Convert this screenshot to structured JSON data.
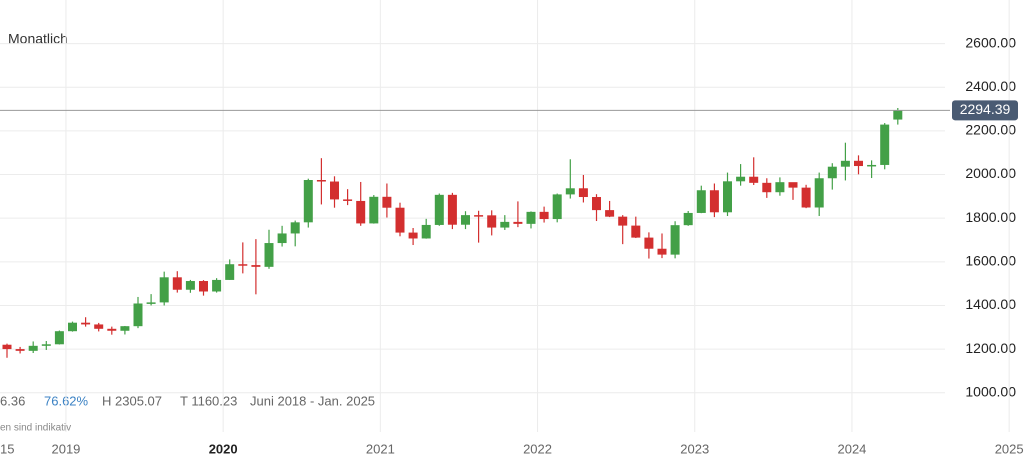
{
  "chart_data": {
    "type": "candlestick",
    "title": "Monatlich",
    "stats": {
      "change": "6.36",
      "change_pct": "76.62%",
      "high": "H 2305.07",
      "low": "T 1160.23",
      "range": "Juni 2018 - Jan. 2025"
    },
    "note": "en sind indikativ",
    "left_cut_label": "15",
    "next_year_label": "2025",
    "categories": [
      null,
      null,
      null,
      null,
      null,
      "2019",
      null,
      null,
      null,
      null,
      null,
      null,
      null,
      null,
      null,
      null,
      null,
      "2020",
      null,
      null,
      null,
      null,
      null,
      null,
      null,
      null,
      null,
      null,
      null,
      "2021",
      null,
      null,
      null,
      null,
      null,
      null,
      null,
      null,
      null,
      null,
      null,
      "2022",
      null,
      null,
      null,
      null,
      null,
      null,
      null,
      null,
      null,
      null,
      null,
      "2023",
      null,
      null,
      null,
      null,
      null,
      null,
      null,
      null,
      null,
      null,
      null,
      "2024",
      null,
      null,
      null
    ],
    "open": [
      1220,
      1200,
      1192,
      1215,
      1222,
      1282,
      1321,
      1313,
      1293,
      1284,
      1305,
      1409,
      1414,
      1529,
      1472,
      1512,
      1464,
      1517,
      1589,
      1585,
      1577,
      1686,
      1730,
      1781,
      1975,
      1968,
      1886,
      1879,
      1776,
      1898,
      1848,
      1734,
      1707,
      1769,
      1907,
      1770,
      1814,
      1813,
      1757,
      1783,
      1774,
      1829,
      1796,
      1909,
      1937,
      1897,
      1837,
      1807,
      1766,
      1711,
      1660,
      1633,
      1768,
      1824,
      1928,
      1827,
      1969,
      1990,
      1962,
      1919,
      1965,
      1940,
      1849,
      1983,
      2036,
      2063,
      2039,
      2044,
      2252
    ],
    "high": [
      1225,
      1210,
      1235,
      1237,
      1285,
      1326,
      1346,
      1320,
      1303,
      1306,
      1439,
      1452,
      1555,
      1557,
      1517,
      1516,
      1525,
      1611,
      1689,
      1704,
      1747,
      1765,
      1789,
      1981,
      2075,
      1992,
      1933,
      1966,
      1906,
      1959,
      1871,
      1755,
      1797,
      1913,
      1916,
      1832,
      1834,
      1836,
      1814,
      1877,
      1831,
      1853,
      1913,
      2070,
      1998,
      1910,
      1879,
      1814,
      1807,
      1735,
      1730,
      1786,
      1833,
      1949,
      1959,
      2009,
      2048,
      2079,
      1983,
      1987,
      1949,
      1953,
      2009,
      2052,
      2146,
      2088,
      2065,
      2236,
      2305.07
    ],
    "low": [
      1160.23,
      1180,
      1182,
      1196,
      1221,
      1280,
      1303,
      1281,
      1266,
      1267,
      1296,
      1400,
      1400,
      1459,
      1458,
      1445,
      1459,
      1517,
      1547,
      1451,
      1568,
      1670,
      1671,
      1757,
      1863,
      1848,
      1860,
      1765,
      1775,
      1803,
      1717,
      1677,
      1706,
      1765,
      1750,
      1750,
      1688,
      1721,
      1746,
      1759,
      1753,
      1780,
      1781,
      1890,
      1872,
      1787,
      1805,
      1681,
      1709,
      1615,
      1617,
      1616,
      1765,
      1823,
      1805,
      1810,
      1949,
      1952,
      1893,
      1903,
      1884,
      1846,
      1810,
      1931,
      1973,
      2001,
      1984,
      2024,
      2229
    ],
    "close": [
      1200,
      1192,
      1215,
      1222,
      1282,
      1321,
      1313,
      1293,
      1284,
      1305,
      1409,
      1414,
      1529,
      1472,
      1512,
      1464,
      1517,
      1589,
      1585,
      1577,
      1686,
      1730,
      1781,
      1975,
      1968,
      1886,
      1879,
      1776,
      1898,
      1848,
      1734,
      1707,
      1769,
      1907,
      1770,
      1814,
      1813,
      1757,
      1783,
      1774,
      1829,
      1796,
      1909,
      1937,
      1897,
      1837,
      1807,
      1766,
      1711,
      1660,
      1633,
      1768,
      1824,
      1928,
      1827,
      1969,
      1990,
      1962,
      1919,
      1965,
      1940,
      1849,
      1983,
      2036,
      2063,
      2039,
      2044,
      2229,
      2294.39
    ],
    "last_price": 2294.39,
    "up_color": "#43a047",
    "down_color": "#d32f2f",
    "ylim": [
      820,
      2800
    ],
    "yticks": [
      {
        "value": 1000,
        "label": "1000.00"
      },
      {
        "value": 1200,
        "label": "1200.00"
      },
      {
        "value": 1400,
        "label": "1400.00"
      },
      {
        "value": 1600,
        "label": "1600.00"
      },
      {
        "value": 1800,
        "label": "1800.00"
      },
      {
        "value": 2000,
        "label": "2000.00"
      },
      {
        "value": 2200,
        "label": "2200.00"
      },
      {
        "value": 2400,
        "label": "2400.00"
      },
      {
        "value": 2600,
        "label": "2600.00"
      }
    ],
    "grid": true
  }
}
